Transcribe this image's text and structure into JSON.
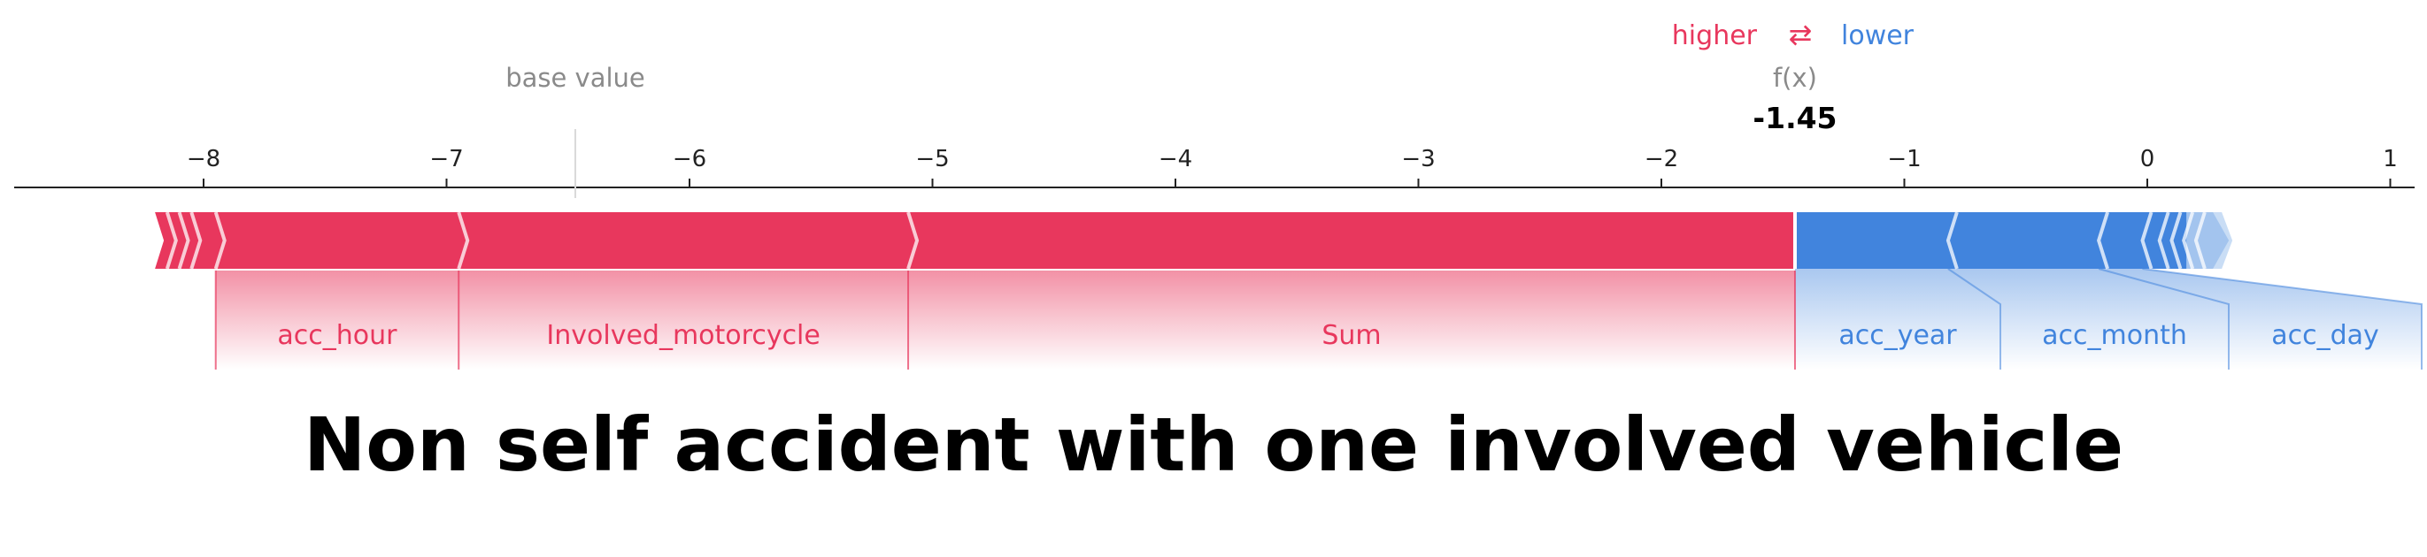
{
  "title": "Non self accident with one involved vehicle",
  "legend": {
    "higher_label": "higher",
    "arrows": "⇄",
    "lower_label": "lower"
  },
  "base_value_label": "base value",
  "fx_label": "f(x)",
  "colors": {
    "higher": "#e8375d",
    "lower": "#4184dd",
    "axis": "#222222",
    "muted": "#8a8a8a"
  },
  "chart_data": {
    "type": "force",
    "xlim": [
      -8.3,
      1.1
    ],
    "ticks": [
      -8,
      -7,
      -6,
      -5,
      -4,
      -3,
      -2,
      -1,
      0,
      1
    ],
    "tick_labels": [
      "−8",
      "−7",
      "−6",
      "−5",
      "−4",
      "−3",
      "−2",
      "−1",
      "0",
      "1"
    ],
    "base_value": -6.47,
    "output_value": -1.45,
    "output_label": "-1.45",
    "positive_bar": {
      "start": -8.2,
      "end": -1.45,
      "boundaries": [
        -8.15,
        -8.1,
        -8.05,
        -7.95,
        -6.95,
        -5.1
      ]
    },
    "negative_bar": {
      "start": -1.45,
      "end": 0.27,
      "boundaries": [
        -0.82,
        -0.2,
        -0.02,
        0.05,
        0.1,
        0.15,
        0.2
      ]
    },
    "features": [
      {
        "name": "acc_hour",
        "effect": "higher",
        "start": -7.95,
        "end": -6.95
      },
      {
        "name": "Involved_motorcycle",
        "effect": "higher",
        "start": -6.95,
        "end": -5.1
      },
      {
        "name": "Sum",
        "effect": "higher",
        "start": -5.1,
        "end": -1.45
      },
      {
        "name": "acc_year",
        "effect": "lower",
        "start": -1.45,
        "end": -0.82
      },
      {
        "name": "acc_month",
        "effect": "lower",
        "start": -0.82,
        "end": -0.2
      },
      {
        "name": "acc_day",
        "effect": "lower",
        "start": -0.2,
        "end": -0.02
      }
    ]
  }
}
